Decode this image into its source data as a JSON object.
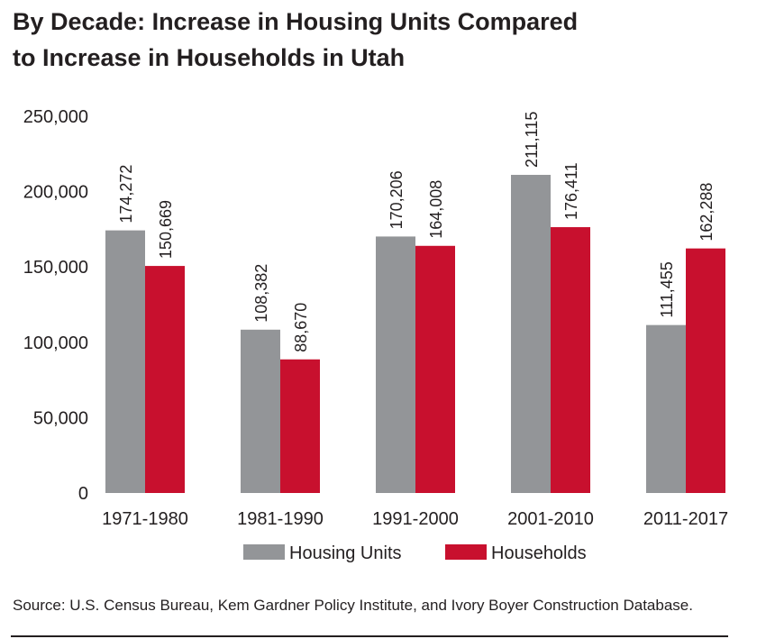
{
  "title_lines": [
    "By Decade: Increase in Housing Units Compared",
    "to Increase in Households in Utah"
  ],
  "source": "Source: U.S. Census Bureau, Kem Gardner Policy Institute, and Ivory Boyer Construction Database.",
  "colors": {
    "housing_units": "#939598",
    "households": "#c8102e",
    "text": "#231f20"
  },
  "chart_data": {
    "type": "bar",
    "title": "By Decade: Increase in Housing Units Compared to Increase in Households in Utah",
    "categories": [
      "1971-1980",
      "1981-1990",
      "1991-2000",
      "2001-2010",
      "2011-2017"
    ],
    "series": [
      {
        "name": "Housing Units",
        "values": [
          174272,
          108382,
          170206,
          211115,
          111455
        ],
        "labels": [
          "174,272",
          "108,382",
          "170,206",
          "211,115",
          "111,455"
        ]
      },
      {
        "name": "Households",
        "values": [
          150669,
          88670,
          164008,
          176411,
          162288
        ],
        "labels": [
          "150,669",
          "88,670",
          "164,008",
          "176,411",
          "162,288"
        ]
      }
    ],
    "ylim": [
      0,
      250000
    ],
    "yticks": [
      0,
      50000,
      100000,
      150000,
      200000,
      250000
    ],
    "ytick_labels": [
      "0",
      "50,000",
      "100,000",
      "150,000",
      "200,000",
      "250,000"
    ],
    "xlabel": "",
    "ylabel": "",
    "grid": false,
    "legend_position": "bottom"
  }
}
